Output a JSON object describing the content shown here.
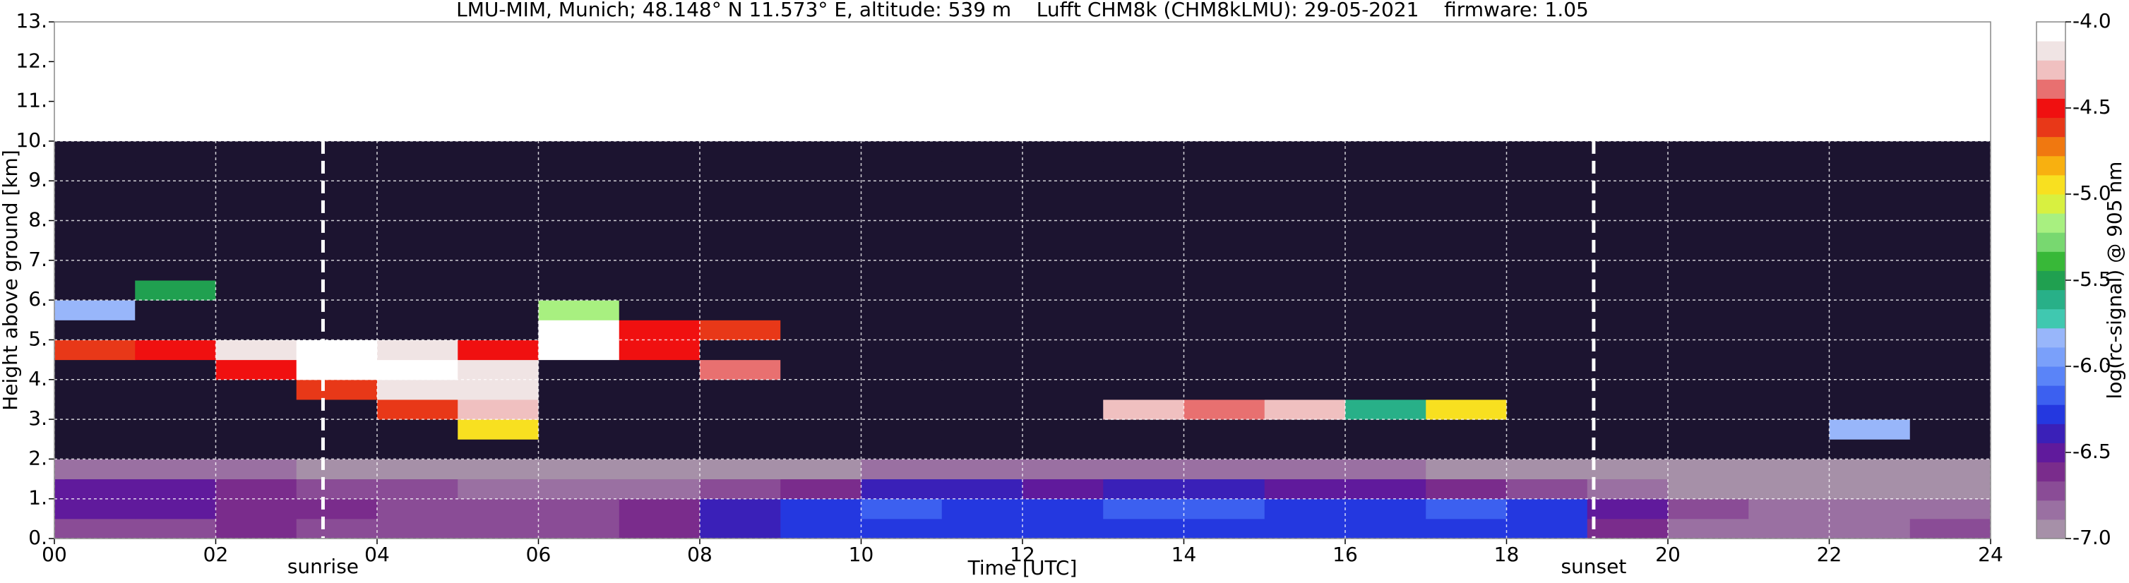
{
  "chart_data": {
    "type": "heatmap",
    "title": "LMU-MIM, Munich; 48.148° N 11.573° E, altitude: 539 m    Lufft CHM8k (CHM8kLMU): 29-05-2021    firmware: 1.05",
    "xlabel": "Time [UTC]",
    "ylabel": "Height above ground [km]",
    "colorbar_label": "log(rc-signal) @ 905 nm",
    "x": [
      0,
      1,
      2,
      3,
      4,
      5,
      6,
      7,
      8,
      9,
      10,
      11,
      12,
      13,
      14,
      15,
      16,
      17,
      18,
      19,
      20,
      21,
      22,
      23,
      24
    ],
    "y": [
      0,
      0.5,
      1,
      1.5,
      2,
      2.5,
      3,
      3.5,
      4,
      4.5,
      5,
      5.5,
      6,
      6.5,
      7,
      7.5,
      8,
      8.5,
      9,
      9.5,
      10
    ],
    "z": [
      [
        -6.7,
        -6.7,
        -6.6,
        -6.7,
        -6.7,
        -6.7,
        -6.7,
        -6.6,
        -6.4,
        -6.3,
        -6.3,
        -6.3,
        -6.3,
        -6.3,
        -6.3,
        -6.3,
        -6.3,
        -6.3,
        -6.3,
        -6.6,
        -6.8,
        -6.8,
        -6.8,
        -6.7
      ],
      [
        -6.5,
        -6.5,
        -6.6,
        -6.6,
        -6.7,
        -6.7,
        -6.7,
        -6.6,
        -6.4,
        -6.3,
        -6.2,
        -6.3,
        -6.3,
        -6.2,
        -6.2,
        -6.3,
        -6.3,
        -6.2,
        -6.3,
        -6.5,
        -6.7,
        -6.8,
        -6.8,
        -6.8
      ],
      [
        -6.5,
        -6.5,
        -6.6,
        -6.7,
        -6.7,
        -6.8,
        -6.8,
        -6.8,
        -6.7,
        -6.6,
        -6.4,
        -6.4,
        -6.5,
        -6.4,
        -6.4,
        -6.5,
        -6.5,
        -6.6,
        -6.7,
        -6.8,
        -6.9,
        -6.9,
        -6.9,
        -6.9
      ],
      [
        -6.8,
        -6.8,
        -6.8,
        -6.9,
        -6.9,
        -6.9,
        -6.9,
        -6.9,
        -6.9,
        -6.9,
        -6.8,
        -6.8,
        -6.8,
        -6.8,
        -6.8,
        -6.8,
        -6.8,
        -6.9,
        -6.9,
        -6.9,
        -6.95,
        -6.95,
        -6.95,
        -6.95
      ],
      [
        -7.5,
        -7.5,
        -7.5,
        -7.5,
        -7.5,
        -7.5,
        -7.5,
        -7.5,
        -7.5,
        -7.5,
        -7.5,
        -7.5,
        -7.5,
        -7.5,
        -7.5,
        -7.5,
        -7.5,
        -7.5,
        -7.5,
        -7.5,
        -7.5,
        -7.5,
        -7.5,
        -7.5
      ],
      [
        -7.5,
        -7.5,
        -7.5,
        -7.5,
        -7.5,
        -5.0,
        -7.5,
        -7.5,
        -7.5,
        -7.5,
        -7.5,
        -7.5,
        -7.5,
        -7.5,
        -7.5,
        -7.5,
        -7.5,
        -7.5,
        -7.5,
        -7.5,
        -7.5,
        -7.5,
        -5.8,
        -7.5
      ],
      [
        -7.5,
        -7.5,
        -7.5,
        -7.5,
        -4.6,
        -4.3,
        -7.5,
        -7.5,
        -7.5,
        -7.5,
        -7.5,
        -7.5,
        -7.5,
        -4.3,
        -4.4,
        -4.3,
        -5.6,
        -5.0,
        -7.5,
        -7.5,
        -7.5,
        -7.5,
        -7.5,
        -7.5
      ],
      [
        -7.5,
        -7.5,
        -7.5,
        -4.6,
        -4.2,
        -4.2,
        -7.5,
        -7.5,
        -7.5,
        -7.5,
        -7.5,
        -7.5,
        -7.5,
        -7.5,
        -7.5,
        -7.5,
        -7.5,
        -7.5,
        -7.5,
        -7.5,
        -7.5,
        -7.5,
        -7.5,
        -7.5
      ],
      [
        -7.5,
        -7.5,
        -4.5,
        -4.1,
        -4.1,
        -4.2,
        -7.5,
        -7.5,
        -4.4,
        -7.5,
        -7.5,
        -7.5,
        -7.5,
        -7.5,
        -7.5,
        -7.5,
        -7.5,
        -7.5,
        -7.5,
        -7.5,
        -7.5,
        -7.5,
        -7.5,
        -7.5
      ],
      [
        -4.6,
        -4.5,
        -4.2,
        -4.1,
        -4.2,
        -4.5,
        -4.1,
        -4.5,
        -7.5,
        -7.5,
        -7.5,
        -7.5,
        -7.5,
        -7.5,
        -7.5,
        -7.5,
        -7.5,
        -7.5,
        -7.5,
        -7.5,
        -7.5,
        -7.5,
        -7.5,
        -7.5
      ],
      [
        -7.5,
        -7.5,
        -7.5,
        -7.5,
        -7.5,
        -7.5,
        -4.1,
        -4.5,
        -4.6,
        -7.5,
        -7.5,
        -7.5,
        -7.5,
        -7.5,
        -7.5,
        -7.5,
        -7.5,
        -7.5,
        -7.5,
        -7.5,
        -7.5,
        -7.5,
        -7.5,
        -7.5
      ],
      [
        -5.8,
        -7.5,
        -7.5,
        -7.5,
        -7.5,
        -7.5,
        -5.2,
        -7.5,
        -7.5,
        -7.5,
        -7.5,
        -7.5,
        -7.5,
        -7.5,
        -7.5,
        -7.5,
        -7.5,
        -7.5,
        -7.5,
        -7.5,
        -7.5,
        -7.5,
        -7.5,
        -7.5
      ],
      [
        -7.5,
        -5.5,
        -7.5,
        -7.5,
        -7.5,
        -7.5,
        -7.5,
        -7.5,
        -7.5,
        -7.5,
        -7.5,
        -7.5,
        -7.5,
        -7.5,
        -7.5,
        -7.5,
        -7.5,
        -7.5,
        -7.5,
        -7.5,
        -7.5,
        -7.5,
        -7.5,
        -7.5
      ],
      [
        -7.5,
        -7.5,
        -7.5,
        -7.5,
        -7.5,
        -7.5,
        -7.5,
        -7.5,
        -7.5,
        -7.5,
        -7.5,
        -7.5,
        -7.5,
        -7.5,
        -7.5,
        -7.5,
        -7.5,
        -7.5,
        -7.5,
        -7.5,
        -7.5,
        -7.5,
        -7.5,
        -7.5
      ],
      [
        -7.5,
        -7.5,
        -7.5,
        -7.5,
        -7.5,
        -7.5,
        -7.5,
        -7.5,
        -7.5,
        -7.5,
        -7.5,
        -7.5,
        -7.5,
        -7.5,
        -7.5,
        -7.5,
        -7.5,
        -7.5,
        -7.5,
        -7.5,
        -7.5,
        -7.5,
        -7.5,
        -7.5
      ],
      [
        -7.5,
        -7.5,
        -7.5,
        -7.5,
        -7.5,
        -7.5,
        -7.5,
        -7.5,
        -7.5,
        -7.5,
        -7.5,
        -7.5,
        -7.5,
        -7.5,
        -7.5,
        -7.5,
        -7.5,
        -7.5,
        -7.5,
        -7.5,
        -7.5,
        -7.5,
        -7.5,
        -7.5
      ],
      [
        -7.5,
        -7.5,
        -7.5,
        -7.5,
        -7.5,
        -7.5,
        -7.5,
        -7.5,
        -7.5,
        -7.5,
        -7.5,
        -7.5,
        -7.5,
        -7.5,
        -7.5,
        -7.5,
        -7.5,
        -7.5,
        -7.5,
        -7.5,
        -7.5,
        -7.5,
        -7.5,
        -7.5
      ],
      [
        -7.5,
        -7.5,
        -7.5,
        -7.5,
        -7.5,
        -7.5,
        -7.5,
        -7.5,
        -7.5,
        -7.5,
        -7.5,
        -7.5,
        -7.5,
        -7.5,
        -7.5,
        -7.5,
        -7.5,
        -7.5,
        -7.5,
        -7.5,
        -7.5,
        -7.5,
        -7.5,
        -7.5
      ],
      [
        -7.5,
        -7.5,
        -7.5,
        -7.5,
        -7.5,
        -7.5,
        -7.5,
        -7.5,
        -7.5,
        -7.5,
        -7.5,
        -7.5,
        -7.5,
        -7.5,
        -7.5,
        -7.5,
        -7.5,
        -7.5,
        -7.5,
        -7.5,
        -7.5,
        -7.5,
        -7.5,
        -7.5
      ],
      [
        -7.5,
        -7.5,
        -7.5,
        -7.5,
        -7.5,
        -7.5,
        -7.5,
        -7.5,
        -7.5,
        -7.5,
        -7.5,
        -7.5,
        -7.5,
        -7.5,
        -7.5,
        -7.5,
        -7.5,
        -7.5,
        -7.5,
        -7.5,
        -7.5,
        -7.5,
        -7.5,
        -7.5
      ]
    ],
    "xlim": [
      0,
      24
    ],
    "ylim": [
      0,
      13
    ],
    "xticks": [
      {
        "value": 0,
        "label": "00"
      },
      {
        "value": 2,
        "label": "02"
      },
      {
        "value": 4,
        "label": "04"
      },
      {
        "value": 6,
        "label": "06"
      },
      {
        "value": 8,
        "label": "08"
      },
      {
        "value": 10,
        "label": "10"
      },
      {
        "value": 12,
        "label": "12"
      },
      {
        "value": 14,
        "label": "14"
      },
      {
        "value": 16,
        "label": "16"
      },
      {
        "value": 18,
        "label": "18"
      },
      {
        "value": 20,
        "label": "20"
      },
      {
        "value": 22,
        "label": "22"
      },
      {
        "value": 24,
        "label": "24"
      }
    ],
    "yticks": [
      {
        "value": 0,
        "label": "0."
      },
      {
        "value": 1,
        "label": "1."
      },
      {
        "value": 2,
        "label": "2."
      },
      {
        "value": 3,
        "label": "3."
      },
      {
        "value": 4,
        "label": "4."
      },
      {
        "value": 5,
        "label": "5."
      },
      {
        "value": 6,
        "label": "6."
      },
      {
        "value": 7,
        "label": "7."
      },
      {
        "value": 8,
        "label": "8."
      },
      {
        "value": 9,
        "label": "9."
      },
      {
        "value": 10,
        "label": "10."
      },
      {
        "value": 11,
        "label": "11."
      },
      {
        "value": 12,
        "label": "12."
      },
      {
        "value": 13,
        "label": "13."
      }
    ],
    "clim": [
      -7,
      -4
    ],
    "cticks": [
      {
        "value": -4,
        "label": "-4.0"
      },
      {
        "value": -4.5,
        "label": "-4.5"
      },
      {
        "value": -5,
        "label": "-5.0"
      },
      {
        "value": -5.5,
        "label": "-5.5"
      },
      {
        "value": -6,
        "label": "-6.0"
      },
      {
        "value": -6.5,
        "label": "-6.5"
      },
      {
        "value": -7,
        "label": "-7.0"
      }
    ],
    "colorscale": [
      "#a690a8",
      "#9a70a2",
      "#8a4c96",
      "#7a2c8c",
      "#601a9c",
      "#3a20b8",
      "#2438e0",
      "#3c60f0",
      "#5a84f8",
      "#7aa0fa",
      "#98b6fa",
      "#40c8b0",
      "#28b088",
      "#20a050",
      "#38b838",
      "#78d870",
      "#a8f080",
      "#d8f040",
      "#f8e020",
      "#f8b010",
      "#f07810",
      "#e83818",
      "#f01010",
      "#e87070",
      "#f0c0c0",
      "#f0e4e4",
      "#ffffff"
    ],
    "under_color": "#1c1430",
    "grid": true,
    "grid_color": "#ffffff",
    "annotations": [
      {
        "x": 3.33,
        "label": "sunrise"
      },
      {
        "x": 19.08,
        "label": "sunset"
      }
    ]
  }
}
